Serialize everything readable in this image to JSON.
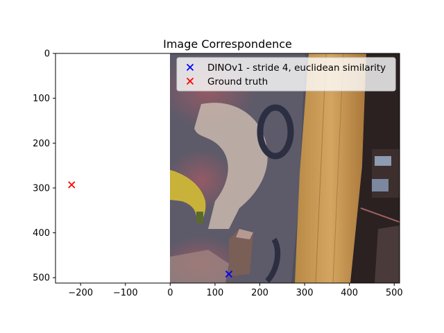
{
  "chart_data": {
    "type": "scatter",
    "title": "Image Correspondence",
    "xlabel": "",
    "ylabel": "",
    "xlim": [
      -256,
      512
    ],
    "ylim": [
      512,
      0
    ],
    "y_inverted": true,
    "grid": false,
    "legend_placement": "top-right",
    "x_ticks": [
      -200,
      -100,
      0,
      100,
      200,
      300,
      400,
      500
    ],
    "y_ticks": [
      0,
      100,
      200,
      300,
      400,
      500
    ],
    "background_image": {
      "description_visible": "photo occupying x 0–512, y 0–512",
      "x_extent": [
        0,
        512
      ],
      "y_extent": [
        512,
        0
      ]
    },
    "series": [
      {
        "name": "DINOv1 - stride 4, euclidean similarity",
        "marker": "x",
        "color": "#0000ff",
        "points": [
          {
            "x": 131,
            "y": 492
          }
        ]
      },
      {
        "name": "Ground truth",
        "marker": "x",
        "color": "#ff0000",
        "points": [
          {
            "x": -220,
            "y": 293
          }
        ]
      }
    ]
  }
}
